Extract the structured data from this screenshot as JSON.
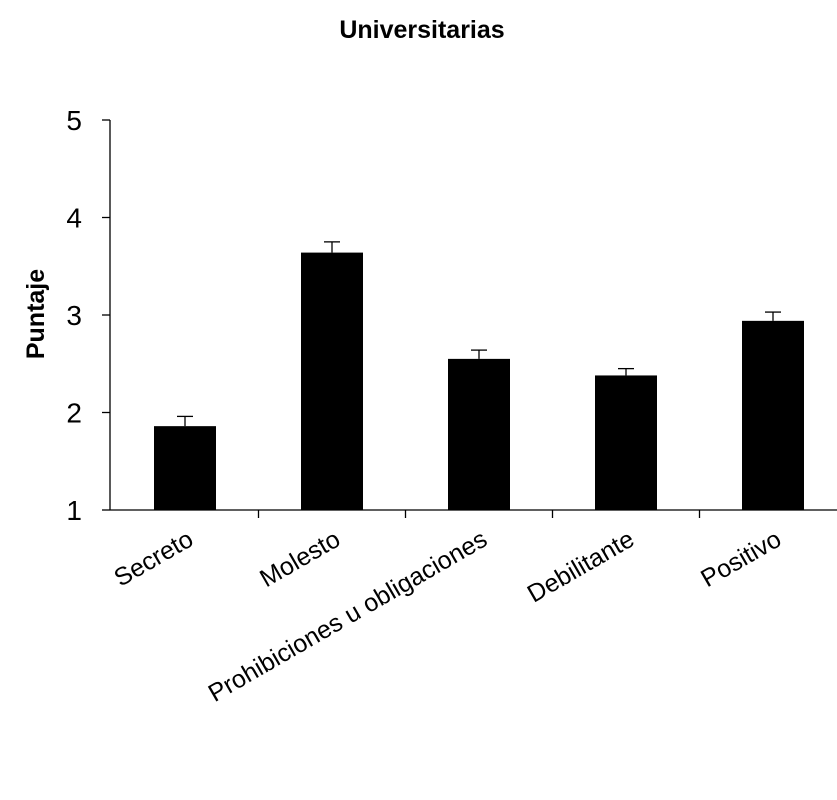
{
  "chart_data": {
    "type": "bar",
    "title": "Universitarias",
    "xlabel": "",
    "ylabel": "Puntaje",
    "ylim": [
      1,
      5
    ],
    "yticks": [
      1,
      2,
      3,
      4,
      5
    ],
    "categories": [
      "Secreto",
      "Molesto",
      "Prohibiciones u obligaciones",
      "Debilitante",
      "Positivo"
    ],
    "values": [
      1.86,
      3.64,
      2.55,
      2.38,
      2.94
    ],
    "errors": [
      0.1,
      0.11,
      0.09,
      0.07,
      0.09
    ],
    "bar_color": "#000000",
    "grid": false,
    "legend": "none"
  }
}
